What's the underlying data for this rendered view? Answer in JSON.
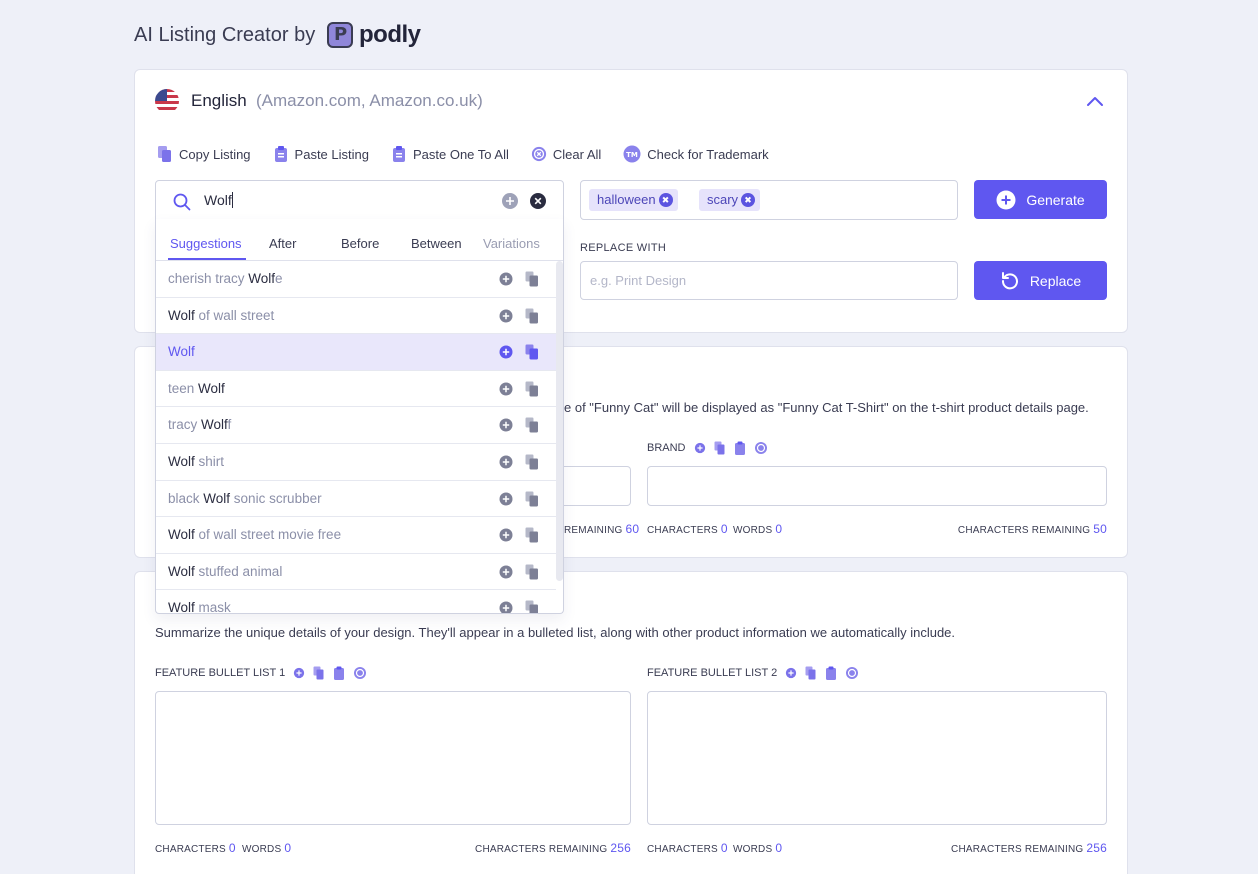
{
  "header": {
    "title": "AI Listing Creator by",
    "brand": "podly"
  },
  "language": {
    "name": "English",
    "markets": "(Amazon.com, Amazon.co.uk)"
  },
  "toolbar": {
    "copy": "Copy Listing",
    "paste": "Paste Listing",
    "paste_all": "Paste One To All",
    "clear": "Clear All",
    "trademark": "Check for Trademark"
  },
  "search": {
    "value": "Wolf"
  },
  "tags": [
    "halloween",
    "scary"
  ],
  "buttons": {
    "generate": "Generate",
    "replace": "Replace"
  },
  "replace": {
    "label": "REPLACE WITH",
    "placeholder": "e.g. Print Design"
  },
  "dropdown": {
    "tabs": [
      "Suggestions",
      "After",
      "Before",
      "Between",
      "Variations"
    ],
    "active_tab": "Suggestions"
  },
  "suggestions": [
    {
      "pre": "cherish tracy ",
      "match": "Wolf",
      "post": "e"
    },
    {
      "pre": "",
      "match": "Wolf",
      "post": " of wall street"
    },
    {
      "pre": "",
      "match": "Wolf",
      "post": ""
    },
    {
      "pre": "teen ",
      "match": "Wolf",
      "post": ""
    },
    {
      "pre": "tracy ",
      "match": "Wolf",
      "post": "f"
    },
    {
      "pre": "",
      "match": "Wolf",
      "post": " shirt"
    },
    {
      "pre": "black ",
      "match": "Wolf",
      "post": " sonic scrubber"
    },
    {
      "pre": "",
      "match": "Wolf",
      "post": " of wall street movie free"
    },
    {
      "pre": "",
      "match": "Wolf",
      "post": " stuffed animal"
    },
    {
      "pre": "",
      "match": "Wolf",
      "post": " mask"
    }
  ],
  "highlighted_index": 2,
  "title_section": {
    "desc": "e of \"Funny Cat\" will be displayed as \"Funny Cat T-Shirt\" on the t-shirt product details page.",
    "title_remaining_label": "REMAINING",
    "title_remaining": "60",
    "brand_label": "BRAND",
    "brand_chars_label": "CHARACTERS",
    "brand_chars": "0",
    "brand_words_label": "WORDS",
    "brand_words": "0",
    "brand_remaining_label": "CHARACTERS REMAINING",
    "brand_remaining": "50"
  },
  "features": {
    "desc": "Summarize the unique details of your design. They'll appear in a bulleted list, along with other product information we automatically include.",
    "list1_label": "FEATURE BULLET LIST 1",
    "list2_label": "FEATURE BULLET LIST 2",
    "chars_label": "CHARACTERS",
    "chars1": "0",
    "chars2": "0",
    "words_label": "WORDS",
    "words1": "0",
    "words2": "0",
    "remaining_label": "CHARACTERS REMAINING",
    "remaining1": "256",
    "remaining2": "256"
  },
  "colors": {
    "accent": "#5f57f0",
    "tag_bg": "#e6e3fb",
    "highlight_row": "#e9e7fb"
  }
}
